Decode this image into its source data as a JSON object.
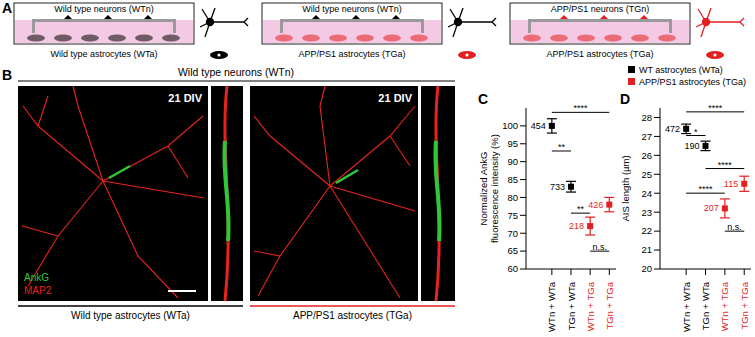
{
  "panel_labels": [
    "A",
    "B",
    "C",
    "D"
  ],
  "panel_A": {
    "cultures": [
      {
        "neurons": "Wild type neurons (WTn)",
        "astrocytes": "Wild type astrocytes (WTa)",
        "neuron_color": "#000000",
        "astrocyte_color": "#000000"
      },
      {
        "neurons": "Wild type neurons (WTn)",
        "astrocytes": "APP/PS1 astrocytes (TGa)",
        "neuron_color": "#000000",
        "astrocyte_color": "#e41f1f"
      },
      {
        "neurons": "APP/PS1 neurons (TGn)",
        "astrocytes": "APP/PS1 astrocytes (TGa)",
        "neuron_color": "#e41f1f",
        "astrocyte_color": "#e41f1f"
      }
    ]
  },
  "panel_B": {
    "header": "Wild type neurons (WTn)",
    "images": [
      {
        "tag": "21 DIV",
        "caption": "Wild type astrocytes (WTa)",
        "caption_color": "#000000"
      },
      {
        "tag": "21 DIV",
        "caption": "APP/PS1 astrocytes (TGa)",
        "caption_color": "#e41f1f"
      }
    ],
    "stains": [
      {
        "name": "AnkG",
        "color": "#2ec836"
      },
      {
        "name": "MAP2",
        "color": "#e8231f"
      }
    ]
  },
  "legend": [
    {
      "name": "WT astrocytes (WTa)",
      "color": "#000000"
    },
    {
      "name": "APP/PS1 astrocytes (TGa)",
      "color": "#e41f1f"
    }
  ],
  "chart_data": [
    {
      "type": "scatter",
      "ylabel": [
        "Normalized AnkG",
        "fluorescence intensity (%)"
      ],
      "categories": [
        "WTn + WTa",
        "TGn + WTa",
        "WTn + TGa",
        "TGn + TGa"
      ],
      "values": [
        100,
        83,
        72,
        78
      ],
      "errors": [
        2,
        1.5,
        2.5,
        2
      ],
      "n": [
        454,
        733,
        218,
        426
      ],
      "colors": [
        "#000000",
        "#000000",
        "#e41f1f",
        "#e41f1f"
      ],
      "marker": "square",
      "ylim": [
        60,
        105
      ],
      "yticks": [
        60,
        65,
        70,
        75,
        80,
        85,
        90,
        95,
        100
      ],
      "significance": [
        {
          "from": 0,
          "to": 1,
          "label": "**"
        },
        {
          "from": 0,
          "to": 3,
          "label": "****"
        },
        {
          "from": 1,
          "to": 2,
          "label": "**"
        },
        {
          "from": 2,
          "to": 3,
          "label": "n.s."
        }
      ]
    },
    {
      "type": "scatter",
      "ylabel": [
        "AIS length (µm)"
      ],
      "categories": [
        "WTn + WTa",
        "TGn + WTa",
        "WTn + TGa",
        "TGn + TGa"
      ],
      "values": [
        27.4,
        26.5,
        23.2,
        24.5
      ],
      "errors": [
        0.25,
        0.25,
        0.5,
        0.4
      ],
      "n": [
        472,
        190,
        207,
        115
      ],
      "colors": [
        "#000000",
        "#000000",
        "#e41f1f",
        "#e41f1f"
      ],
      "marker": "square",
      "ylim": [
        20,
        28.5
      ],
      "yticks": [
        20,
        21,
        22,
        23,
        24,
        25,
        26,
        27,
        28
      ],
      "significance": [
        {
          "from": 0,
          "to": 1,
          "label": "*"
        },
        {
          "from": 0,
          "to": 3,
          "label": "****"
        },
        {
          "from": 0,
          "to": 2,
          "label": "****"
        },
        {
          "from": 1,
          "to": 3,
          "label": "****"
        },
        {
          "from": 2,
          "to": 3,
          "label": "n.s."
        }
      ]
    }
  ]
}
